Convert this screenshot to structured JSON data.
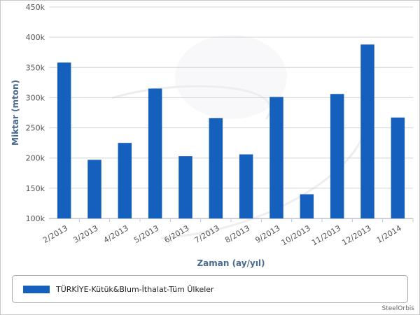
{
  "chart_data": {
    "type": "bar",
    "categories": [
      "2/2013",
      "3/2013",
      "4/2013",
      "5/2013",
      "6/2013",
      "7/2013",
      "8/2013",
      "9/2013",
      "10/2013",
      "11/2013",
      "12/2013",
      "1/2014"
    ],
    "series": [
      {
        "name": "TÜRKİYE-Kütük&Blum-İthalat-Tüm Ülkeler",
        "color": "#1560bd",
        "values": [
          358000,
          197000,
          225000,
          315000,
          203000,
          266000,
          206000,
          301000,
          140000,
          306000,
          388000,
          267000
        ]
      }
    ],
    "xlabel": "Zaman (ay/yıl)",
    "ylabel": "Miktar (mton)",
    "ylim": [
      100000,
      450000
    ],
    "yticks": [
      "100k",
      "150k",
      "200k",
      "250k",
      "300k",
      "350k",
      "400k",
      "450k"
    ],
    "grid": true,
    "legend_position": "bottom"
  },
  "credit": "SteelOrbis"
}
